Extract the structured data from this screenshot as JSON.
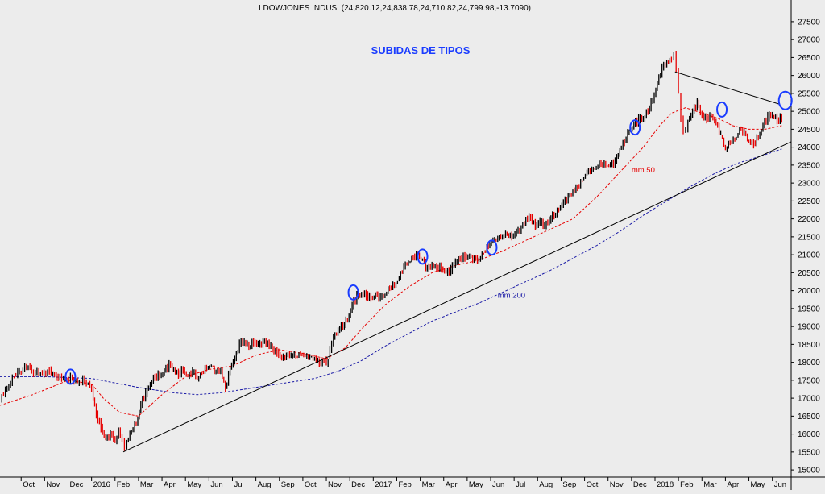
{
  "header": {
    "quote": "I DOWJONES INDUS. (24,820.12,24,838.78,24,710.82,24,799.98,-13.7090)",
    "annotation": "SUBIDAS DE TIPOS"
  },
  "colors": {
    "background": "#ececec",
    "candles_up": "#000000",
    "candles_down": "#e60000",
    "mm50": "#e60000",
    "mm200": "#1a1aa6",
    "trendline": "#000000",
    "circles": "#1a3cff",
    "annotation": "#1a3cff"
  },
  "chart_data": {
    "type": "line",
    "xlabel": "",
    "ylabel": "",
    "ylim": [
      14800,
      27700
    ],
    "y_ticks": [
      15000,
      15500,
      16000,
      16500,
      17000,
      17500,
      18000,
      18500,
      19000,
      19500,
      20000,
      20500,
      21000,
      21500,
      22000,
      22500,
      23000,
      23500,
      24000,
      24500,
      25000,
      25500,
      26000,
      26500,
      27000,
      27500
    ],
    "y_tick_labels": [
      "15000",
      "15500",
      "16000",
      "16500",
      "17000",
      "17500",
      "18000",
      "18500",
      "19000",
      "19500",
      "20000",
      "20500",
      "21000",
      "21500",
      "22000",
      "22500",
      "23000",
      "23500",
      "24000",
      "24500",
      "25000",
      "25500",
      "26000",
      "26500",
      "27000",
      "27500"
    ],
    "x_ticks": [
      {
        "label": "Oct",
        "t": 0.0
      },
      {
        "label": "Nov",
        "t": 1.0
      },
      {
        "label": "Dec",
        "t": 2.0
      },
      {
        "label": "2016",
        "t": 3.0
      },
      {
        "label": "Feb",
        "t": 4.0
      },
      {
        "label": "Mar",
        "t": 5.0
      },
      {
        "label": "Apr",
        "t": 6.0
      },
      {
        "label": "May",
        "t": 7.0
      },
      {
        "label": "Jun",
        "t": 8.0
      },
      {
        "label": "Jul",
        "t": 9.0
      },
      {
        "label": "Aug",
        "t": 10.0
      },
      {
        "label": "Sep",
        "t": 11.0
      },
      {
        "label": "Oct",
        "t": 12.0
      },
      {
        "label": "Nov",
        "t": 13.0
      },
      {
        "label": "Dec",
        "t": 14.0
      },
      {
        "label": "2017",
        "t": 15.0
      },
      {
        "label": "Feb",
        "t": 16.0
      },
      {
        "label": "Mar",
        "t": 17.0
      },
      {
        "label": "Apr",
        "t": 18.0
      },
      {
        "label": "May",
        "t": 19.0
      },
      {
        "label": "Jun",
        "t": 20.0
      },
      {
        "label": "Jul",
        "t": 21.0
      },
      {
        "label": "Aug",
        "t": 22.0
      },
      {
        "label": "Sep",
        "t": 23.0
      },
      {
        "label": "Oct",
        "t": 24.0
      },
      {
        "label": "Nov",
        "t": 25.0
      },
      {
        "label": "Dec",
        "t": 26.0
      },
      {
        "label": "2018",
        "t": 27.0
      },
      {
        "label": "Feb",
        "t": 28.0
      },
      {
        "label": "Mar",
        "t": 29.0
      },
      {
        "label": "Apr",
        "t": 30.0
      },
      {
        "label": "May",
        "t": 31.0
      },
      {
        "label": "Jun",
        "t": 32.0
      }
    ],
    "t_range": [
      -0.9,
      32.8
    ],
    "series": [
      {
        "name": "",
        "style": "candles",
        "points": [
          [
            -0.9,
            16900
          ],
          [
            -0.6,
            17300
          ],
          [
            -0.3,
            17650
          ],
          [
            0.0,
            17750
          ],
          [
            0.3,
            17900
          ],
          [
            0.6,
            17700
          ],
          [
            0.9,
            17650
          ],
          [
            1.2,
            17800
          ],
          [
            1.5,
            17600
          ],
          [
            1.8,
            17500
          ],
          [
            2.1,
            17600
          ],
          [
            2.4,
            17400
          ],
          [
            2.7,
            17500
          ],
          [
            3.0,
            17300
          ],
          [
            3.2,
            16600
          ],
          [
            3.4,
            16200
          ],
          [
            3.6,
            15900
          ],
          [
            3.8,
            16000
          ],
          [
            4.0,
            15800
          ],
          [
            4.15,
            16100
          ],
          [
            4.3,
            15800
          ],
          [
            4.4,
            15600
          ],
          [
            4.5,
            15800
          ],
          [
            4.7,
            16100
          ],
          [
            4.9,
            16300
          ],
          [
            5.1,
            16800
          ],
          [
            5.3,
            17100
          ],
          [
            5.5,
            17400
          ],
          [
            5.7,
            17600
          ],
          [
            5.9,
            17650
          ],
          [
            6.1,
            17800
          ],
          [
            6.3,
            17950
          ],
          [
            6.5,
            17850
          ],
          [
            6.7,
            17700
          ],
          [
            6.9,
            17800
          ],
          [
            7.1,
            17600
          ],
          [
            7.3,
            17700
          ],
          [
            7.5,
            17500
          ],
          [
            7.7,
            17700
          ],
          [
            7.9,
            17800
          ],
          [
            8.1,
            17900
          ],
          [
            8.3,
            17700
          ],
          [
            8.5,
            17800
          ],
          [
            8.7,
            17300
          ],
          [
            8.9,
            17850
          ],
          [
            9.1,
            18100
          ],
          [
            9.3,
            18500
          ],
          [
            9.5,
            18550
          ],
          [
            9.7,
            18450
          ],
          [
            9.9,
            18550
          ],
          [
            10.1,
            18500
          ],
          [
            10.3,
            18600
          ],
          [
            10.5,
            18550
          ],
          [
            10.7,
            18450
          ],
          [
            10.9,
            18300
          ],
          [
            11.1,
            18100
          ],
          [
            11.3,
            18200
          ],
          [
            11.5,
            18150
          ],
          [
            11.7,
            18150
          ],
          [
            11.9,
            18200
          ],
          [
            12.1,
            18100
          ],
          [
            12.3,
            18150
          ],
          [
            12.5,
            18100
          ],
          [
            12.7,
            18000
          ],
          [
            12.9,
            18100
          ],
          [
            13.0,
            17900
          ],
          [
            13.15,
            18300
          ],
          [
            13.3,
            18700
          ],
          [
            13.5,
            18900
          ],
          [
            13.7,
            19000
          ],
          [
            13.9,
            19200
          ],
          [
            14.1,
            19550
          ],
          [
            14.3,
            19850
          ],
          [
            14.5,
            19950
          ],
          [
            14.7,
            19900
          ],
          [
            14.9,
            19850
          ],
          [
            15.1,
            19900
          ],
          [
            15.3,
            19800
          ],
          [
            15.5,
            19900
          ],
          [
            15.7,
            20050
          ],
          [
            15.9,
            20100
          ],
          [
            16.1,
            20300
          ],
          [
            16.3,
            20600
          ],
          [
            16.5,
            20800
          ],
          [
            16.7,
            20950
          ],
          [
            16.9,
            21000
          ],
          [
            17.1,
            20900
          ],
          [
            17.3,
            20600
          ],
          [
            17.5,
            20750
          ],
          [
            17.7,
            20650
          ],
          [
            17.9,
            20600
          ],
          [
            18.1,
            20500
          ],
          [
            18.3,
            20550
          ],
          [
            18.5,
            20800
          ],
          [
            18.7,
            20950
          ],
          [
            18.9,
            20950
          ],
          [
            19.1,
            21000
          ],
          [
            19.3,
            20900
          ],
          [
            19.5,
            20850
          ],
          [
            19.7,
            21100
          ],
          [
            19.9,
            21200
          ],
          [
            20.1,
            21350
          ],
          [
            20.3,
            21400
          ],
          [
            20.5,
            21450
          ],
          [
            20.7,
            21600
          ],
          [
            20.9,
            21500
          ],
          [
            21.1,
            21650
          ],
          [
            21.3,
            21800
          ],
          [
            21.5,
            22000
          ],
          [
            21.7,
            22100
          ],
          [
            21.9,
            21800
          ],
          [
            22.1,
            21900
          ],
          [
            22.3,
            21800
          ],
          [
            22.5,
            21950
          ],
          [
            22.7,
            22100
          ],
          [
            22.9,
            22300
          ],
          [
            23.1,
            22450
          ],
          [
            23.3,
            22650
          ],
          [
            23.5,
            22800
          ],
          [
            23.7,
            22900
          ],
          [
            23.9,
            23100
          ],
          [
            24.1,
            23250
          ],
          [
            24.3,
            23300
          ],
          [
            24.5,
            23400
          ],
          [
            24.7,
            23500
          ],
          [
            24.9,
            23500
          ],
          [
            25.1,
            23500
          ],
          [
            25.3,
            23600
          ],
          [
            25.5,
            24000
          ],
          [
            25.7,
            24200
          ],
          [
            25.9,
            24500
          ],
          [
            26.1,
            24650
          ],
          [
            26.3,
            24750
          ],
          [
            26.5,
            24800
          ],
          [
            26.7,
            25000
          ],
          [
            26.9,
            25300
          ],
          [
            27.1,
            25800
          ],
          [
            27.3,
            26200
          ],
          [
            27.5,
            26400
          ],
          [
            27.7,
            26500
          ],
          [
            27.8,
            26600
          ],
          [
            27.9,
            26150
          ],
          [
            28.0,
            25500
          ],
          [
            28.1,
            24800
          ],
          [
            28.2,
            24400
          ],
          [
            28.3,
            24500
          ],
          [
            28.4,
            24800
          ],
          [
            28.6,
            25000
          ],
          [
            28.8,
            25300
          ],
          [
            29.0,
            24900
          ],
          [
            29.2,
            24800
          ],
          [
            29.4,
            24900
          ],
          [
            29.6,
            24600
          ],
          [
            29.8,
            24300
          ],
          [
            30.0,
            23900
          ],
          [
            30.2,
            24100
          ],
          [
            30.4,
            24200
          ],
          [
            30.6,
            24500
          ],
          [
            30.8,
            24400
          ],
          [
            31.0,
            24200
          ],
          [
            31.2,
            24100
          ],
          [
            31.4,
            24300
          ],
          [
            31.6,
            24600
          ],
          [
            31.8,
            24800
          ],
          [
            32.0,
            24900
          ],
          [
            32.2,
            24750
          ],
          [
            32.4,
            24800
          ]
        ]
      },
      {
        "name": "mm 50",
        "style": "dashed",
        "points": [
          [
            -0.9,
            16800
          ],
          [
            0.5,
            17100
          ],
          [
            2.0,
            17500
          ],
          [
            3.0,
            17400
          ],
          [
            3.5,
            17000
          ],
          [
            4.2,
            16600
          ],
          [
            5.0,
            16500
          ],
          [
            6.0,
            17100
          ],
          [
            7.0,
            17600
          ],
          [
            8.0,
            17800
          ],
          [
            9.0,
            17900
          ],
          [
            10.0,
            18200
          ],
          [
            11.0,
            18350
          ],
          [
            12.0,
            18250
          ],
          [
            13.0,
            18100
          ],
          [
            13.8,
            18400
          ],
          [
            14.6,
            19000
          ],
          [
            15.5,
            19600
          ],
          [
            16.5,
            20100
          ],
          [
            17.5,
            20500
          ],
          [
            18.5,
            20700
          ],
          [
            19.5,
            20850
          ],
          [
            20.5,
            21100
          ],
          [
            21.5,
            21400
          ],
          [
            22.5,
            21700
          ],
          [
            23.5,
            22000
          ],
          [
            24.5,
            22600
          ],
          [
            25.5,
            23300
          ],
          [
            26.5,
            24000
          ],
          [
            27.2,
            24600
          ],
          [
            27.7,
            24950
          ],
          [
            28.3,
            25100
          ],
          [
            29.0,
            24950
          ],
          [
            29.7,
            24800
          ],
          [
            30.3,
            24600
          ],
          [
            31.0,
            24500
          ],
          [
            31.7,
            24500
          ],
          [
            32.4,
            24600
          ]
        ]
      },
      {
        "name": "mm 200",
        "style": "dashed",
        "points": [
          [
            -0.9,
            17600
          ],
          [
            1.0,
            17600
          ],
          [
            3.0,
            17550
          ],
          [
            5.0,
            17300
          ],
          [
            6.5,
            17150
          ],
          [
            7.5,
            17100
          ],
          [
            8.5,
            17150
          ],
          [
            9.5,
            17250
          ],
          [
            10.5,
            17350
          ],
          [
            11.5,
            17450
          ],
          [
            12.5,
            17550
          ],
          [
            13.5,
            17750
          ],
          [
            14.5,
            18050
          ],
          [
            15.5,
            18450
          ],
          [
            16.5,
            18800
          ],
          [
            17.5,
            19150
          ],
          [
            18.5,
            19400
          ],
          [
            19.5,
            19650
          ],
          [
            20.5,
            19950
          ],
          [
            21.5,
            20250
          ],
          [
            22.5,
            20550
          ],
          [
            23.5,
            20900
          ],
          [
            24.5,
            21250
          ],
          [
            25.5,
            21650
          ],
          [
            26.5,
            22100
          ],
          [
            27.5,
            22500
          ],
          [
            28.5,
            22900
          ],
          [
            29.5,
            23250
          ],
          [
            30.5,
            23550
          ],
          [
            31.5,
            23750
          ],
          [
            32.4,
            23950
          ]
        ]
      }
    ],
    "trendlines": [
      {
        "from": [
          4.35,
          15500
        ],
        "to": [
          32.8,
          24150
        ]
      },
      {
        "from": [
          27.85,
          26100
        ],
        "to": [
          32.3,
          25200
        ]
      }
    ],
    "circles": [
      [
        2.1,
        17600
      ],
      [
        14.15,
        19950
      ],
      [
        17.1,
        20950
      ],
      [
        20.05,
        21200
      ],
      [
        26.15,
        24550
      ],
      [
        29.85,
        25050
      ],
      [
        32.55,
        25300
      ]
    ],
    "annotations": [
      {
        "text": "mm 50",
        "t": 26.0,
        "y": 23300
      },
      {
        "text": "mm 200",
        "t": 20.3,
        "y": 19800
      }
    ]
  }
}
